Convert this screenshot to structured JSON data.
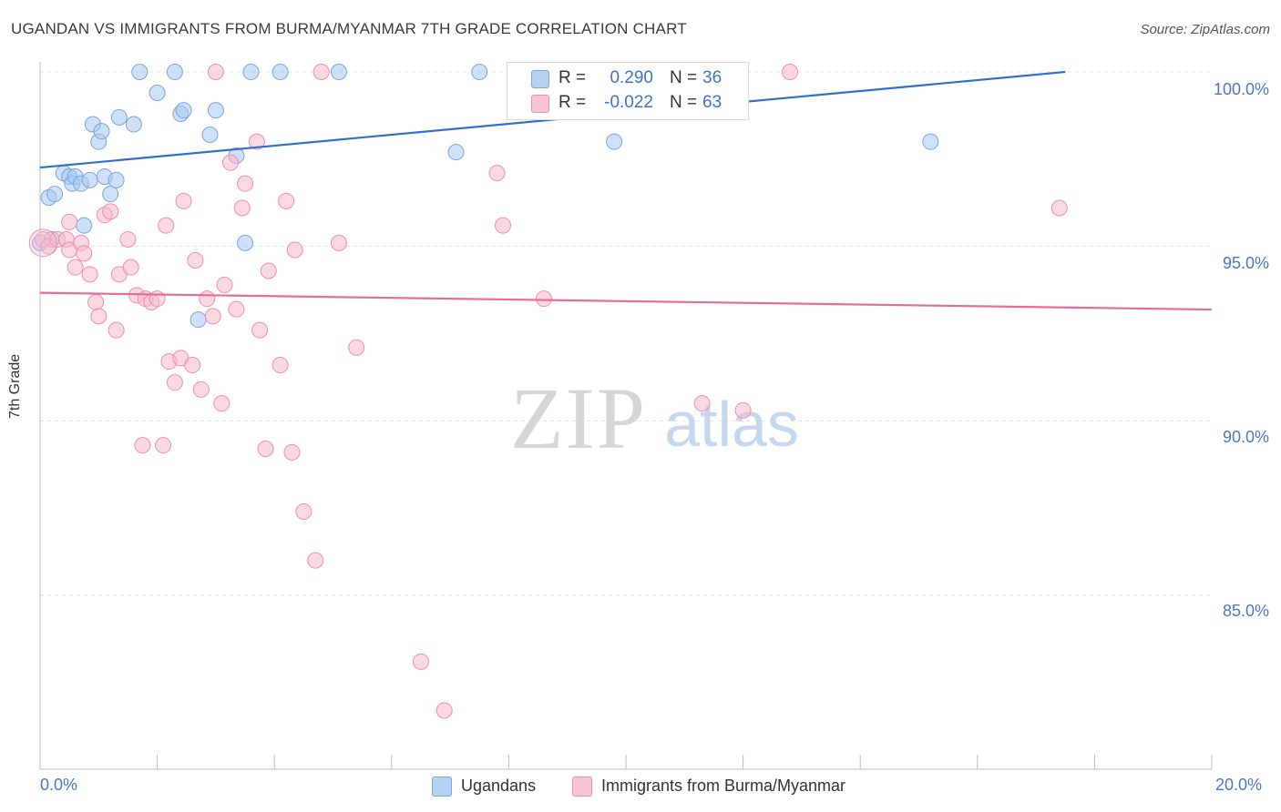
{
  "chart_data": {
    "type": "scatter",
    "title": "UGANDAN VS IMMIGRANTS FROM BURMA/MYANMAR 7TH GRADE CORRELATION CHART",
    "source": "Source: ZipAtlas.com",
    "ylabel": "7th Grade",
    "xlabel": "",
    "xlim": [
      0,
      20
    ],
    "ylim": [
      80.0,
      101.0
    ],
    "x_tick_labels": [
      "0.0%",
      "20.0%"
    ],
    "y_ticks": [
      {
        "value": 100,
        "label": "100.0%"
      },
      {
        "value": 95,
        "label": "95.0%"
      },
      {
        "value": 90,
        "label": "90.0%"
      },
      {
        "value": 85,
        "label": "85.0%"
      }
    ],
    "grid": true,
    "watermark": {
      "zip": "ZIP",
      "atlas": "atlas"
    },
    "legend": {
      "position": "top-center",
      "rows": [
        {
          "r_label": "R =",
          "r_value": "0.290",
          "n_label": "N =",
          "n_value": "36"
        },
        {
          "r_label": "R =",
          "r_value": "-0.022",
          "n_label": "N =",
          "n_value": "63"
        }
      ]
    },
    "series": [
      {
        "name": "Ugandans",
        "color": "#a8c8f0",
        "stroke": "#7aa6e0",
        "trend_color": "#2f6fcd",
        "trend": {
          "x0": 0,
          "y0": 97.26,
          "x1": 17.5,
          "y1": 100.0
        },
        "points": [
          [
            0.0,
            95.1
          ],
          [
            0.15,
            96.4
          ],
          [
            0.25,
            96.5
          ],
          [
            0.4,
            97.1
          ],
          [
            0.5,
            97.0
          ],
          [
            0.55,
            96.8
          ],
          [
            0.6,
            97.0
          ],
          [
            0.7,
            96.8
          ],
          [
            0.75,
            95.6
          ],
          [
            0.85,
            96.9
          ],
          [
            0.9,
            98.5
          ],
          [
            1.0,
            98.0
          ],
          [
            1.05,
            98.3
          ],
          [
            1.1,
            97.0
          ],
          [
            1.2,
            96.5
          ],
          [
            1.3,
            96.9
          ],
          [
            1.35,
            98.7
          ],
          [
            1.6,
            98.5
          ],
          [
            1.7,
            100.0
          ],
          [
            2.0,
            99.4
          ],
          [
            2.3,
            100.0
          ],
          [
            2.4,
            98.8
          ],
          [
            2.45,
            98.9
          ],
          [
            2.7,
            92.9
          ],
          [
            2.9,
            98.2
          ],
          [
            3.0,
            98.9
          ],
          [
            3.35,
            97.6
          ],
          [
            3.5,
            95.1
          ],
          [
            3.6,
            100.0
          ],
          [
            4.1,
            100.0
          ],
          [
            5.1,
            100.0
          ],
          [
            7.1,
            97.7
          ],
          [
            7.5,
            100.0
          ],
          [
            9.8,
            98.0
          ],
          [
            15.2,
            98.0
          ],
          [
            0.2,
            95.2
          ]
        ]
      },
      {
        "name": "Immigrants from Burma/Myanmar",
        "color": "#f7b9cc",
        "stroke": "#ee8fae",
        "trend_color": "#e46c96",
        "trend": {
          "x0": 0,
          "y0": 93.67,
          "x1": 20,
          "y1": 93.19
        },
        "points": [
          [
            0.05,
            95.2
          ],
          [
            0.15,
            95.0
          ],
          [
            0.3,
            95.2
          ],
          [
            0.45,
            95.2
          ],
          [
            0.5,
            94.9
          ],
          [
            0.5,
            95.7
          ],
          [
            0.6,
            94.4
          ],
          [
            0.7,
            95.1
          ],
          [
            0.75,
            94.8
          ],
          [
            0.85,
            94.2
          ],
          [
            0.95,
            93.4
          ],
          [
            1.0,
            93.0
          ],
          [
            1.1,
            95.9
          ],
          [
            1.2,
            96.0
          ],
          [
            1.3,
            92.6
          ],
          [
            1.35,
            94.2
          ],
          [
            1.5,
            95.2
          ],
          [
            1.55,
            94.4
          ],
          [
            1.65,
            93.6
          ],
          [
            1.75,
            89.3
          ],
          [
            1.8,
            93.5
          ],
          [
            1.9,
            93.4
          ],
          [
            2.0,
            93.5
          ],
          [
            2.1,
            89.3
          ],
          [
            2.15,
            95.6
          ],
          [
            2.2,
            91.7
          ],
          [
            2.3,
            91.1
          ],
          [
            2.4,
            91.8
          ],
          [
            2.45,
            96.3
          ],
          [
            2.6,
            91.6
          ],
          [
            2.65,
            94.6
          ],
          [
            2.75,
            90.9
          ],
          [
            2.85,
            93.5
          ],
          [
            2.95,
            93.0
          ],
          [
            3.0,
            100.0
          ],
          [
            3.1,
            90.5
          ],
          [
            3.15,
            93.9
          ],
          [
            3.25,
            97.4
          ],
          [
            3.35,
            93.2
          ],
          [
            3.45,
            96.1
          ],
          [
            3.5,
            96.8
          ],
          [
            3.7,
            98.0
          ],
          [
            3.75,
            92.6
          ],
          [
            3.85,
            89.2
          ],
          [
            3.9,
            94.3
          ],
          [
            4.1,
            91.6
          ],
          [
            4.2,
            96.3
          ],
          [
            4.3,
            89.1
          ],
          [
            4.35,
            94.9
          ],
          [
            4.5,
            87.4
          ],
          [
            4.7,
            86.0
          ],
          [
            4.8,
            100.0
          ],
          [
            5.1,
            95.1
          ],
          [
            5.4,
            92.1
          ],
          [
            6.5,
            83.1
          ],
          [
            6.9,
            81.7
          ],
          [
            7.8,
            97.1
          ],
          [
            7.9,
            95.6
          ],
          [
            8.6,
            93.5
          ],
          [
            11.3,
            90.5
          ],
          [
            12.0,
            90.3
          ],
          [
            12.8,
            100.0
          ],
          [
            17.4,
            96.1
          ]
        ]
      }
    ]
  }
}
